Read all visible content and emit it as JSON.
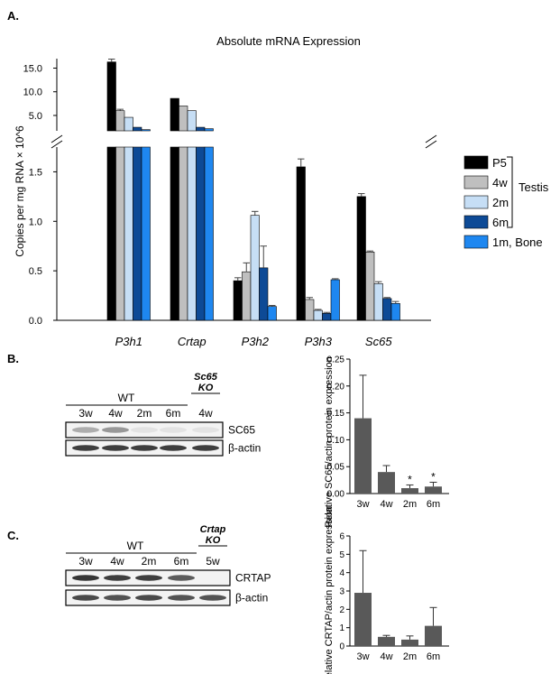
{
  "panels": {
    "a": {
      "label": "A."
    },
    "b": {
      "label": "B."
    },
    "c": {
      "label": "C."
    }
  },
  "colors": {
    "P5": "#000000",
    "4w": "#bfbfbf",
    "2m": "#c6def5",
    "6m": "#0d4a96",
    "1m_bone": "#1e87f0",
    "bar_gray": "#595959",
    "band_dark": "#2a2a2a"
  },
  "legend_group": "Testis",
  "blot_b": {
    "group_wt": "WT",
    "group_ko": [
      "Sc65",
      "KO"
    ],
    "lanes": [
      "3w",
      "4w",
      "2m",
      "6m",
      "4w"
    ],
    "rows": [
      "SC65",
      "β-actin"
    ],
    "band_intensity": [
      [
        0.35,
        0.45,
        0.08,
        0.08,
        0.08
      ],
      [
        0.9,
        0.9,
        0.9,
        0.9,
        0.9
      ]
    ]
  },
  "blot_c": {
    "group_wt": "WT",
    "group_ko": [
      "Crtap",
      "KO"
    ],
    "lanes": [
      "3w",
      "4w",
      "2m",
      "6m",
      "5w"
    ],
    "rows": [
      "CRTAP",
      "β-actin"
    ],
    "band_intensity": [
      [
        0.95,
        0.9,
        0.9,
        0.75,
        0.0
      ],
      [
        0.85,
        0.8,
        0.85,
        0.8,
        0.8
      ]
    ]
  },
  "chart_data": [
    {
      "type": "bar",
      "title": "Absolute mRNA Expression",
      "ylabel": "Copies per mg RNA × 10^6",
      "categories": [
        "P3h1",
        "Crtap",
        "P3h2",
        "P3h3",
        "Sc65"
      ],
      "broken_axis": true,
      "ylim_lower": [
        0,
        1.75
      ],
      "yticks_lower": [
        "0.0",
        "0.5",
        "1.0",
        "1.5"
      ],
      "ylim_upper": [
        1.75,
        17
      ],
      "yticks_upper": [
        "5.0",
        "10.0",
        "15.0"
      ],
      "series": [
        {
          "name": "P5",
          "values": [
            16.3,
            8.6,
            0.4,
            1.55,
            1.25
          ],
          "errors": [
            0.6,
            0,
            0.03,
            0.08,
            0.03
          ]
        },
        {
          "name": "4w",
          "values": [
            6.0,
            7.0,
            0.49,
            0.21,
            0.69
          ],
          "errors": [
            0.3,
            0,
            0.09,
            0.02,
            0.01
          ]
        },
        {
          "name": "2m",
          "values": [
            4.6,
            6.0,
            1.06,
            0.1,
            0.37
          ],
          "errors": [
            0,
            0,
            0.04,
            0.01,
            0.02
          ]
        },
        {
          "name": "6m",
          "values": [
            2.5,
            2.5,
            0.53,
            0.07,
            0.22
          ],
          "errors": [
            0,
            0,
            0.22,
            0.01,
            0.01
          ]
        },
        {
          "name": "1m, Bone",
          "values": [
            2.0,
            2.2,
            0.14,
            0.41,
            0.17
          ],
          "errors": [
            0,
            0,
            0.01,
            0.01,
            0.02
          ]
        }
      ]
    },
    {
      "type": "bar",
      "ylabel": "Relative SC65/actin protein expression",
      "categories": [
        "3w",
        "4w",
        "2m",
        "6m"
      ],
      "values": [
        0.14,
        0.04,
        0.01,
        0.013
      ],
      "errors": [
        0.08,
        0.012,
        0.006,
        0.008
      ],
      "annotations": [
        "",
        "",
        "*",
        "*"
      ],
      "ylim": [
        0,
        0.25
      ],
      "yticks": [
        "0.00",
        "0.05",
        "0.10",
        "0.15",
        "0.20",
        "0.25"
      ]
    },
    {
      "type": "bar",
      "ylabel": "Relative CRTAP/actin protein expression",
      "categories": [
        "3w",
        "4w",
        "2m",
        "6m"
      ],
      "values": [
        2.9,
        0.5,
        0.35,
        1.1
      ],
      "errors": [
        2.3,
        0.08,
        0.2,
        1.0
      ],
      "ylim": [
        0,
        6
      ],
      "yticks": [
        "0",
        "1",
        "2",
        "3",
        "4",
        "5",
        "6"
      ]
    }
  ]
}
